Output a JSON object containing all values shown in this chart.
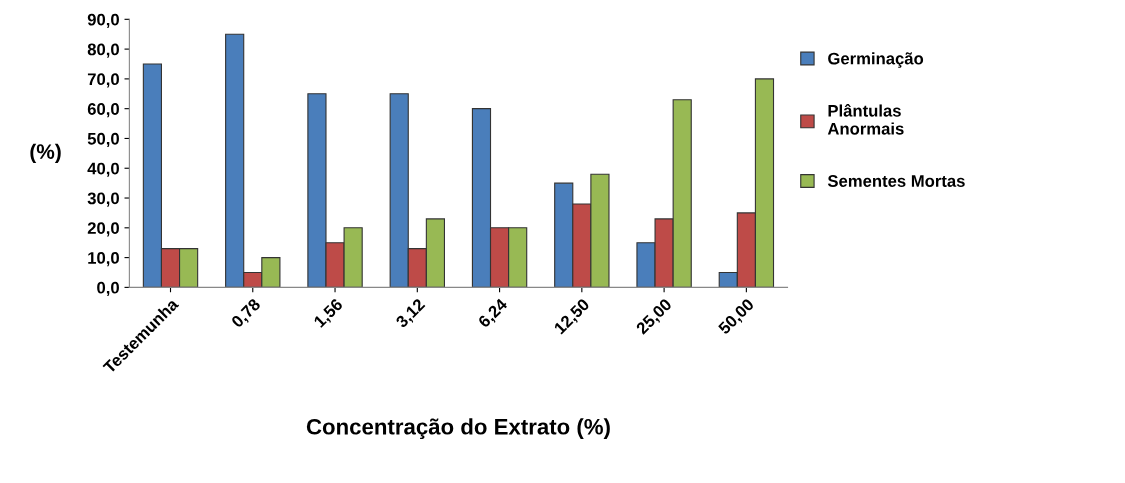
{
  "chart_data": {
    "type": "bar",
    "xlabel": "Concentração do Extrato (%)",
    "ylabel": "(%)",
    "categories": [
      "Testemunha",
      "0,78",
      "1,56",
      "3,12",
      "6,24",
      "12,50",
      "25,00",
      "50,00"
    ],
    "series": [
      {
        "name": "Germinação",
        "color": "#4a7ebb",
        "values": [
          75,
          85,
          65,
          65,
          60,
          35,
          15,
          5
        ]
      },
      {
        "name": "Plântulas\nAnormais",
        "color": "#be4b48",
        "values": [
          13,
          5,
          15,
          13,
          20,
          28,
          23,
          25
        ]
      },
      {
        "name": "Sementes Mortas",
        "color": "#98b954",
        "values": [
          13,
          10,
          20,
          23,
          20,
          38,
          63,
          70
        ]
      }
    ],
    "ylim": [
      0,
      90
    ],
    "yticks": [
      {
        "value": 0,
        "label": "0,0"
      },
      {
        "value": 10,
        "label": "10,0"
      },
      {
        "value": 20,
        "label": "20,0"
      },
      {
        "value": 30,
        "label": "30,0"
      },
      {
        "value": 40,
        "label": "40,0"
      },
      {
        "value": 50,
        "label": "50,0"
      },
      {
        "value": 60,
        "label": "60,0"
      },
      {
        "value": 70,
        "label": "70,0"
      },
      {
        "value": 80,
        "label": "80,0"
      },
      {
        "value": 90,
        "label": "90,0"
      }
    ],
    "grid": false,
    "legend": "right"
  }
}
